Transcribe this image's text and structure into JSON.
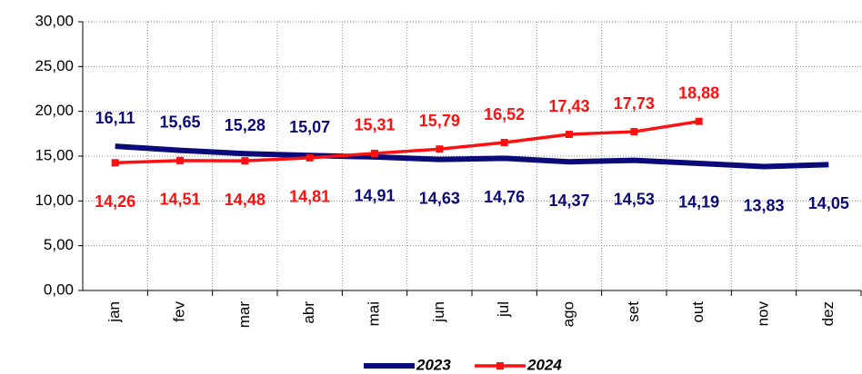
{
  "chart_data": {
    "type": "line",
    "categories": [
      "jan",
      "fev",
      "mar",
      "abr",
      "mai",
      "jun",
      "jul",
      "ago",
      "set",
      "out",
      "nov",
      "dez"
    ],
    "series": [
      {
        "name": "2023",
        "color": "#0a0a78",
        "values": [
          16.11,
          15.65,
          15.28,
          15.07,
          14.91,
          14.63,
          14.76,
          14.37,
          14.53,
          14.19,
          13.83,
          14.05
        ],
        "value_labels": [
          "16,11",
          "15,65",
          "15,28",
          "15,07",
          "14,91",
          "14,63",
          "14,76",
          "14,37",
          "14,53",
          "14,19",
          "13,83",
          "14,05"
        ]
      },
      {
        "name": "2024",
        "color": "#ff1010",
        "values": [
          14.26,
          14.51,
          14.48,
          14.81,
          15.31,
          15.79,
          16.52,
          17.43,
          17.73,
          18.88,
          null,
          null
        ],
        "value_labels": [
          "14,26",
          "14,51",
          "14,48",
          "14,81",
          "15,31",
          "15,79",
          "16,52",
          "17,43",
          "17,73",
          "18,88",
          null,
          null
        ]
      }
    ],
    "ylim": [
      0,
      30
    ],
    "yticks": [
      {
        "value": 0,
        "label": "0,00"
      },
      {
        "value": 5,
        "label": "5,00"
      },
      {
        "value": 10,
        "label": "10,00"
      },
      {
        "value": 15,
        "label": "15,00"
      },
      {
        "value": 20,
        "label": "20,00"
      },
      {
        "value": 25,
        "label": "25,00"
      },
      {
        "value": 30,
        "label": "30,00"
      }
    ],
    "grid": true,
    "legend": "bottom"
  }
}
